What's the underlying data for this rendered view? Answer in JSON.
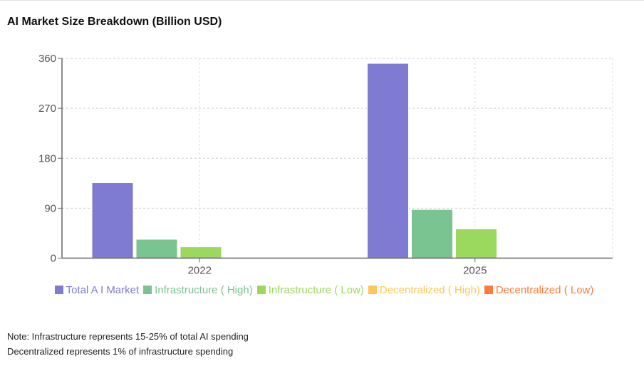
{
  "title": "AI Market Size Breakdown (Billion USD)",
  "chart_data": {
    "type": "bar",
    "title": "AI Market Size Breakdown (Billion USD)",
    "categories": [
      "2022",
      "2025"
    ],
    "series": [
      {
        "name": "Total A I Market",
        "color": "#7f7bd2",
        "values": [
          136,
          351
        ]
      },
      {
        "name": "Infrastructure ( High)",
        "color": "#7ac491",
        "values": [
          34,
          87.75
        ]
      },
      {
        "name": "Infrastructure ( Low)",
        "color": "#9ad95e",
        "values": [
          20.4,
          52.65
        ]
      },
      {
        "name": "Decentralized ( High)",
        "color": "#ffc658",
        "values": [
          0.34,
          0.88
        ]
      },
      {
        "name": "Decentralized ( Low)",
        "color": "#ff7a3d",
        "values": [
          0.2,
          0.53
        ]
      }
    ],
    "yticks": [
      "0",
      "90",
      "180",
      "270",
      "360"
    ],
    "ylim": [
      0,
      360
    ],
    "xlabel": "",
    "ylabel": "",
    "grid": true,
    "legend": "bottom"
  },
  "notes": [
    "Note: Infrastructure represents 15-25% of total AI spending",
    "Decentralized represents 1% of infrastructure spending"
  ]
}
